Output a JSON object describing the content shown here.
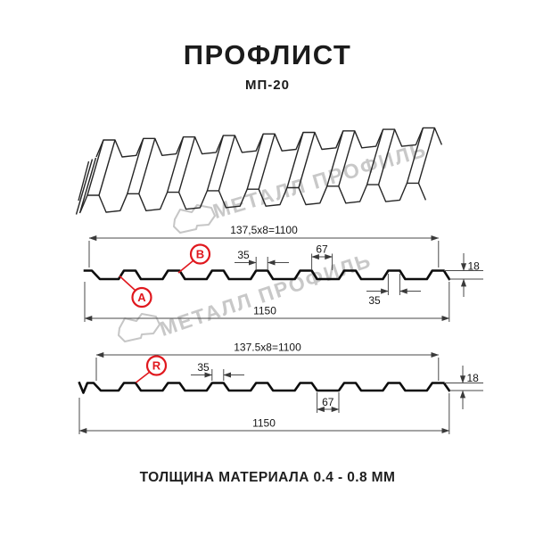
{
  "header": {
    "title": "ПРОФЛИСТ",
    "subtitle": "МП-20"
  },
  "watermark": {
    "brand": "МЕТАЛЛ ПРОФИЛЬ",
    "logo_icon": "metall-profil-logo"
  },
  "profile_top": {
    "label_a": "A",
    "label_b": "B",
    "dim_width_formula": "137,5x8=1100",
    "dim_rib_top_width": "35",
    "dim_rib_spacing": "67",
    "dim_profile_height": "18",
    "dim_rib_top_width_2": "35",
    "dim_overall_width": "1150"
  },
  "profile_bottom": {
    "label_r": "R",
    "dim_width_formula": "137.5x8=1100",
    "dim_rib_top_width": "35",
    "dim_valley_width": "67",
    "dim_profile_height": "18",
    "dim_overall_width": "1150"
  },
  "footer": {
    "thickness_note": "ТОЛЩИНА МАТЕРИАЛА 0.4 - 0.8 ММ"
  }
}
